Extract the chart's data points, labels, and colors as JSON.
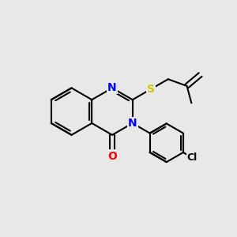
{
  "background_color": "#e8e8e8",
  "bond_color": "#000000",
  "atom_colors": {
    "N": "#0000ff",
    "O": "#ff0000",
    "S": "#cccc00",
    "Cl": "#000000",
    "C": "#000000"
  },
  "bond_width": 1.5,
  "font_size": 10,
  "font_size_cl": 9,
  "fig_size": [
    3.0,
    3.0
  ],
  "dpi": 100
}
